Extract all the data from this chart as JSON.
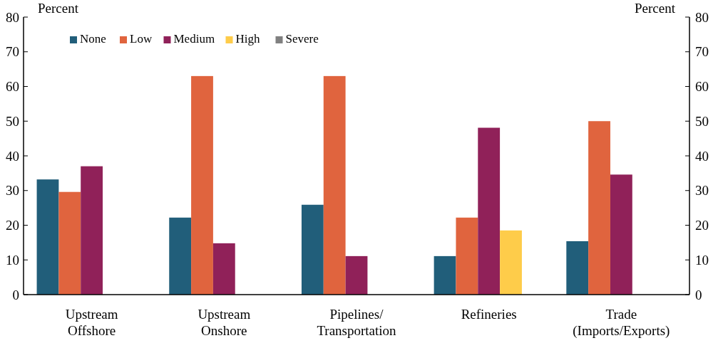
{
  "chart_data": {
    "type": "bar",
    "ylabel": "Percent",
    "y2label": "Percent",
    "categories": [
      "Upstream\nOffshore",
      "Upstream\nOnshore",
      "Pipelines/\nTransportation",
      "Refineries",
      "Trade\n(Imports/Exports)"
    ],
    "series": [
      {
        "name": "None",
        "color": "#215e7a",
        "values": [
          33.2,
          22.2,
          25.9,
          11.1,
          15.4
        ]
      },
      {
        "name": "Low",
        "color": "#e0643e",
        "values": [
          29.6,
          63,
          63,
          22.2,
          50
        ]
      },
      {
        "name": "Medium",
        "color": "#902159",
        "values": [
          37,
          14.8,
          11.1,
          48.1,
          34.6
        ]
      },
      {
        "name": "High",
        "color": "#fecc4a",
        "values": [
          0,
          0,
          0,
          18.5,
          0
        ]
      },
      {
        "name": "Severe",
        "color": "#808080",
        "values": [
          0,
          0,
          0,
          0,
          0
        ]
      }
    ],
    "ylim": [
      0,
      80
    ],
    "yticks": [
      0,
      10,
      20,
      30,
      40,
      50,
      60,
      70,
      80
    ],
    "y2lim": [
      0,
      80
    ],
    "y2ticks": [
      0,
      10,
      20,
      30,
      40,
      50,
      60,
      70,
      80
    ],
    "legend": "top left",
    "grid": false
  }
}
